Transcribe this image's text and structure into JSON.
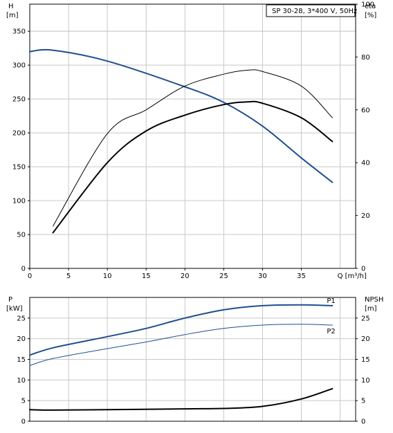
{
  "chart_data": [
    {
      "type": "line",
      "title": "SP 30-28, 3*400 V, 50Hz",
      "left_axis": {
        "label": "H",
        "unit": "[m]",
        "ticks": [
          0,
          50,
          100,
          150,
          200,
          250,
          300,
          350
        ],
        "range": [
          0,
          390
        ]
      },
      "right_axis": {
        "label": "eta",
        "unit": "[%]",
        "ticks": [
          0,
          20,
          40,
          60,
          80,
          100
        ],
        "range": [
          0,
          100
        ]
      },
      "x_axis": {
        "label": "Q [m³/h]",
        "ticks": [
          0,
          5,
          10,
          15,
          20,
          25,
          30,
          35
        ],
        "range": [
          0,
          42
        ]
      },
      "grid": true,
      "series": [
        {
          "axis": "left",
          "color": "#1f4e8c",
          "width": 2,
          "x": [
            0,
            3,
            10,
            20,
            25,
            30,
            35,
            39
          ],
          "y": [
            320,
            322,
            306,
            268,
            245,
            210,
            163,
            127
          ]
        },
        {
          "axis": "right",
          "color": "#000000",
          "width": 1,
          "x": [
            3,
            10,
            15,
            20,
            25,
            28,
            30,
            35,
            39
          ],
          "y": [
            16,
            51,
            60,
            69,
            73.5,
            75,
            74.5,
            69,
            57
          ]
        },
        {
          "axis": "right",
          "color": "#000000",
          "width": 2,
          "x": [
            3,
            10,
            15,
            20,
            25,
            28,
            30,
            35,
            39
          ],
          "y": [
            13.5,
            40,
            52,
            58,
            62,
            63,
            62.5,
            57,
            48
          ]
        }
      ]
    },
    {
      "type": "line",
      "left_axis": {
        "label": "P",
        "unit": "[kW]",
        "ticks": [
          0,
          5,
          10,
          15,
          20,
          25
        ],
        "range": [
          0,
          30
        ]
      },
      "right_axis": {
        "label": "NPSH",
        "unit": "[m]",
        "ticks": [
          0,
          5,
          10,
          15,
          20,
          25
        ],
        "range": [
          0,
          30
        ]
      },
      "x_axis": {
        "range": [
          0,
          42
        ]
      },
      "grid": true,
      "series": [
        {
          "name": "P1",
          "axis": "left",
          "color": "#1f4e8c",
          "width": 2,
          "x": [
            0,
            3,
            10,
            15,
            20,
            25,
            30,
            35,
            39
          ],
          "y": [
            16,
            17.8,
            20.5,
            22.5,
            25,
            27,
            28,
            28.2,
            28
          ]
        },
        {
          "name": "P2",
          "axis": "left",
          "color": "#1f4e8c",
          "width": 1,
          "x": [
            0,
            3,
            10,
            15,
            20,
            25,
            30,
            35,
            39
          ],
          "y": [
            13.5,
            15.2,
            17.6,
            19.2,
            21,
            22.5,
            23.3,
            23.5,
            23.3
          ]
        },
        {
          "axis": "right",
          "color": "#000000",
          "width": 2,
          "x": [
            0,
            3,
            10,
            20,
            25,
            30,
            35,
            39
          ],
          "y": [
            2.8,
            2.7,
            2.8,
            3,
            3.1,
            3.6,
            5.4,
            7.9
          ]
        }
      ]
    }
  ]
}
